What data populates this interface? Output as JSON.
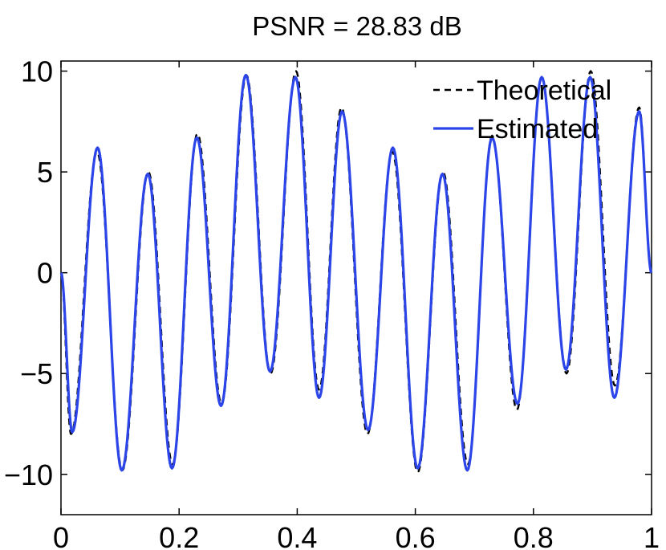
{
  "chart_data": {
    "type": "line",
    "title": "PSNR = 28.83 dB",
    "xlabel": "",
    "ylabel": "",
    "xlim": [
      0,
      1
    ],
    "ylim": [
      -12,
      10.5
    ],
    "x_ticks": [
      "0",
      "0.2",
      "0.4",
      "0.6",
      "0.8",
      "1"
    ],
    "y_ticks": [
      "10",
      "5",
      "0",
      "−5",
      "−10"
    ],
    "grid": false,
    "legend_position": "top-right",
    "series": [
      {
        "name": "Theoretical",
        "color": "#000000",
        "style": "dashed",
        "x": [
          0.0,
          0.017,
          0.061,
          0.104,
          0.148,
          0.189,
          0.231,
          0.272,
          0.314,
          0.355,
          0.398,
          0.437,
          0.475,
          0.519,
          0.561,
          0.604,
          0.647,
          0.689,
          0.73,
          0.772,
          0.814,
          0.856,
          0.897,
          0.938,
          0.979,
          1.0
        ],
        "y": [
          0.0,
          -8.0,
          6.0,
          -9.8,
          5.0,
          -9.5,
          6.9,
          -6.5,
          9.8,
          -5.0,
          10.0,
          -5.8,
          8.2,
          -8.0,
          6.0,
          -9.9,
          5.0,
          -9.5,
          6.8,
          -6.8,
          9.7,
          -5.0,
          10.0,
          -5.6,
          8.2,
          0.0
        ]
      },
      {
        "name": "Estimated",
        "color": "#2b45e8",
        "style": "solid",
        "x": [
          0.0,
          0.019,
          0.062,
          0.103,
          0.147,
          0.188,
          0.23,
          0.271,
          0.313,
          0.354,
          0.397,
          0.437,
          0.476,
          0.52,
          0.562,
          0.604,
          0.646,
          0.688,
          0.73,
          0.773,
          0.814,
          0.855,
          0.896,
          0.937,
          0.979,
          1.0
        ],
        "y": [
          0.0,
          -7.9,
          6.2,
          -9.8,
          4.9,
          -9.7,
          6.7,
          -6.6,
          9.8,
          -4.9,
          9.7,
          -6.2,
          8.0,
          -7.8,
          6.2,
          -9.7,
          4.9,
          -9.8,
          6.7,
          -6.5,
          9.7,
          -4.8,
          9.7,
          -6.2,
          8.0,
          0.0
        ]
      }
    ]
  }
}
